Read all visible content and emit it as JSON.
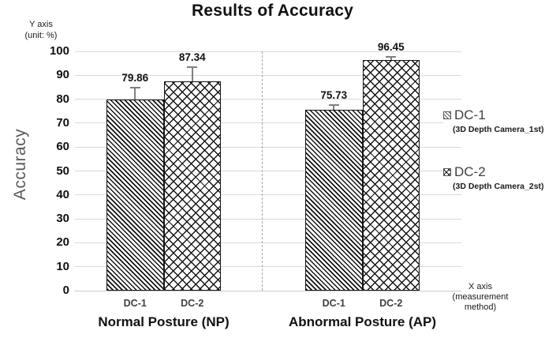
{
  "chart_data": {
    "type": "bar",
    "title": "Results of Accuracy",
    "ylabel": "Accuracy",
    "ylim": [
      0,
      100
    ],
    "ytick_step": 10,
    "grid": "horizontal",
    "legend_position": "right",
    "y_axis_note": {
      "line1": "Y axis",
      "line2": "(unit: %)"
    },
    "x_axis_note": {
      "line1": "X axis",
      "line2": "(measurement",
      "line3": "method)"
    },
    "categories": [
      "Normal Posture (NP)",
      "Abnormal Posture (AP)"
    ],
    "bar_labels": [
      "DC-1",
      "DC-2"
    ],
    "series": [
      {
        "name": "DC-1",
        "desc": "(3D Depth Camera_1st)",
        "pattern": "diagonal-hatch",
        "values": [
          79.86,
          75.73
        ],
        "errors": [
          5.0,
          1.7
        ]
      },
      {
        "name": "DC-2",
        "desc": "(3D Depth Camera_2st)",
        "pattern": "diamond-lattice",
        "values": [
          87.34,
          96.45
        ],
        "errors": [
          6.0,
          1.3
        ]
      }
    ]
  },
  "colors": {
    "bar_ink": "#141414",
    "gridline": "#d9d9d9",
    "error_bar": "#7f7f7f",
    "axis_label_gray": "#595959",
    "text": "#111111"
  }
}
